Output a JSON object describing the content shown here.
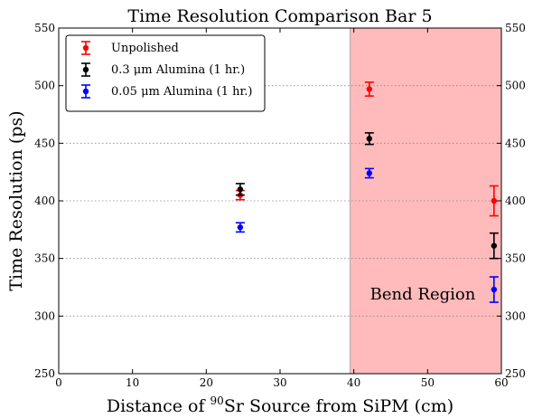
{
  "chart_data": {
    "type": "scatter",
    "title": "Time Resolution Comparison Bar 5",
    "xlabel_pre": "Distance of ",
    "xlabel_sup": "90",
    "xlabel_post": "Sr Source from SiPM (cm)",
    "ylabel": "Time Resolution (ps)",
    "xlim": [
      0,
      60
    ],
    "ylim": [
      250,
      550
    ],
    "xticks": [
      "0",
      "10",
      "20",
      "30",
      "40",
      "50",
      "60"
    ],
    "yticks": [
      "250",
      "300",
      "350",
      "400",
      "450",
      "500",
      "550"
    ],
    "ygrid": true,
    "legend_position": "top-left",
    "highlight_region": {
      "x_start": 39.5,
      "x_end": 60,
      "color": "#ffbbbb",
      "label": "Bend Region"
    },
    "series": [
      {
        "name": "Unpolished",
        "color": "#ff0000",
        "points": [
          {
            "x": 24.6,
            "y": 405,
            "err": 4
          },
          {
            "x": 42.1,
            "y": 497,
            "err": 6
          },
          {
            "x": 59.0,
            "y": 400,
            "err": 13
          }
        ]
      },
      {
        "name": "0.3 μm Alumina (1 hr.)",
        "color": "#000000",
        "points": [
          {
            "x": 24.6,
            "y": 410,
            "err": 5
          },
          {
            "x": 42.1,
            "y": 454,
            "err": 5
          },
          {
            "x": 59.0,
            "y": 361,
            "err": 11
          }
        ]
      },
      {
        "name": "0.05 μm Alumina (1 hr.)",
        "color": "#0000ff",
        "points": [
          {
            "x": 24.6,
            "y": 377,
            "err": 4
          },
          {
            "x": 42.1,
            "y": 424,
            "err": 4
          },
          {
            "x": 59.0,
            "y": 323,
            "err": 11
          }
        ]
      }
    ]
  }
}
